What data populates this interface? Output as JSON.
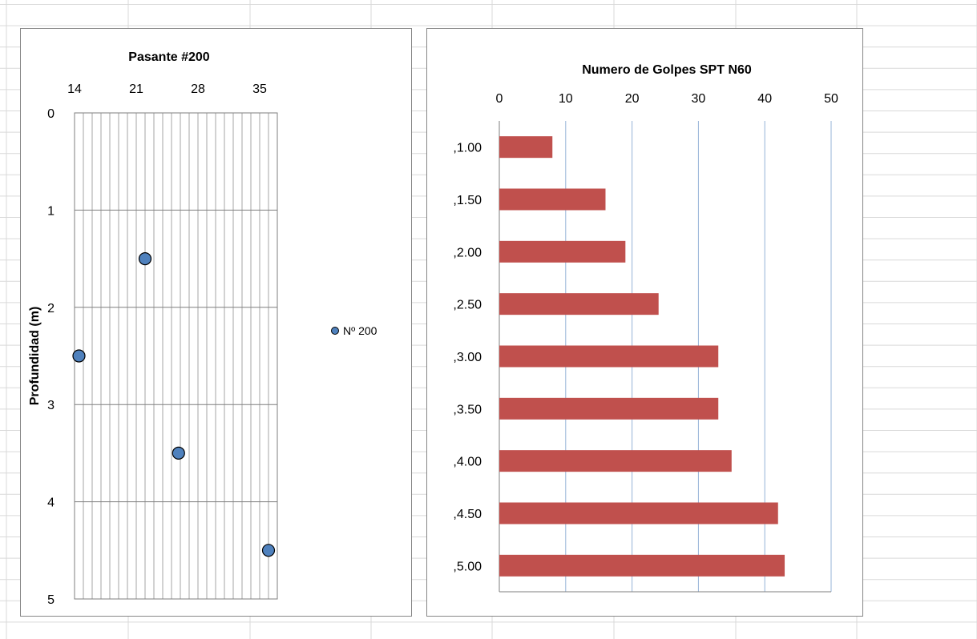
{
  "chart_data": [
    {
      "type": "scatter",
      "title": "Pasante #200",
      "xlabel": "",
      "ylabel": "Profundidad (m)",
      "x_ticks": [
        "14",
        "21",
        "28",
        "35"
      ],
      "xlim": [
        14,
        37
      ],
      "y_ticks": [
        "0",
        "1",
        "2",
        "3",
        "4",
        "5"
      ],
      "ylim": [
        0,
        5
      ],
      "y_reversed": true,
      "x_axis_position": "top",
      "grid": true,
      "legend_position": "right",
      "series": [
        {
          "name": "Nº 200",
          "color": "#4F81BD",
          "points": [
            {
              "x": 22.0,
              "y": 1.5
            },
            {
              "x": 14.5,
              "y": 2.5
            },
            {
              "x": 25.8,
              "y": 3.5
            },
            {
              "x": 36.0,
              "y": 4.5
            }
          ]
        }
      ]
    },
    {
      "type": "bar",
      "orientation": "horizontal",
      "title": "Numero de Golpes SPT N60",
      "xlabel": "",
      "ylabel": "",
      "x_ticks": [
        "0",
        "10",
        "20",
        "30",
        "40",
        "50"
      ],
      "xlim": [
        0,
        50
      ],
      "x_axis_position": "top",
      "grid": true,
      "color": "#C0504D",
      "categories": [
        ",1.00",
        ",1.50",
        ",2.00",
        ",2.50",
        ",3.00",
        ",3.50",
        ",4.00",
        ",4.50",
        ",5.00"
      ],
      "values": [
        8,
        16,
        19,
        24,
        33,
        33,
        35,
        42,
        43
      ]
    }
  ]
}
